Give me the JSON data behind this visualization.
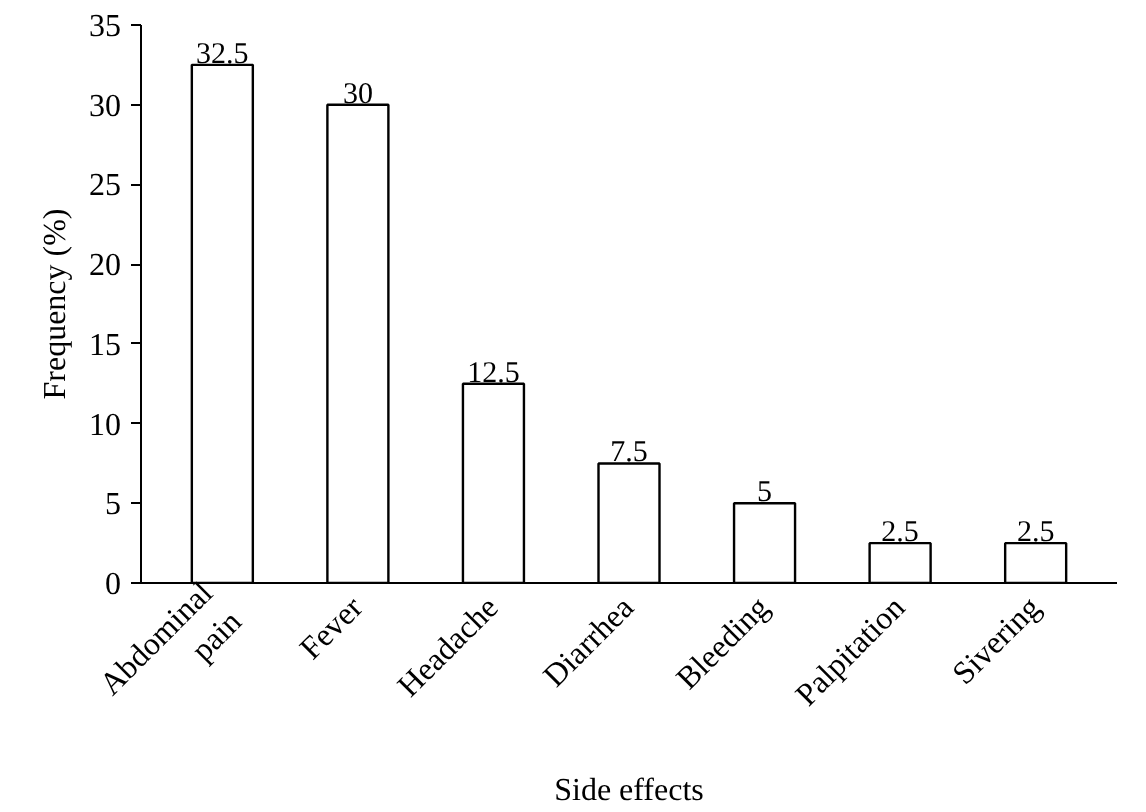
{
  "chart_data": {
    "type": "bar",
    "xlabel": "Side effects",
    "ylabel": "Frequency (%)",
    "categories": [
      "Abdominal pain",
      "Fever",
      "Headache",
      "Diarrhea",
      "Bleeding",
      "Palpitation",
      "Sivering"
    ],
    "values": [
      32.5,
      30,
      12.5,
      7.5,
      5,
      2.5,
      2.5
    ],
    "color": "#ffffff",
    "ylim": [
      0,
      35
    ],
    "yticks": [
      0,
      5,
      10,
      15,
      20,
      25,
      30,
      35
    ],
    "data_labels": true,
    "grid": false
  }
}
